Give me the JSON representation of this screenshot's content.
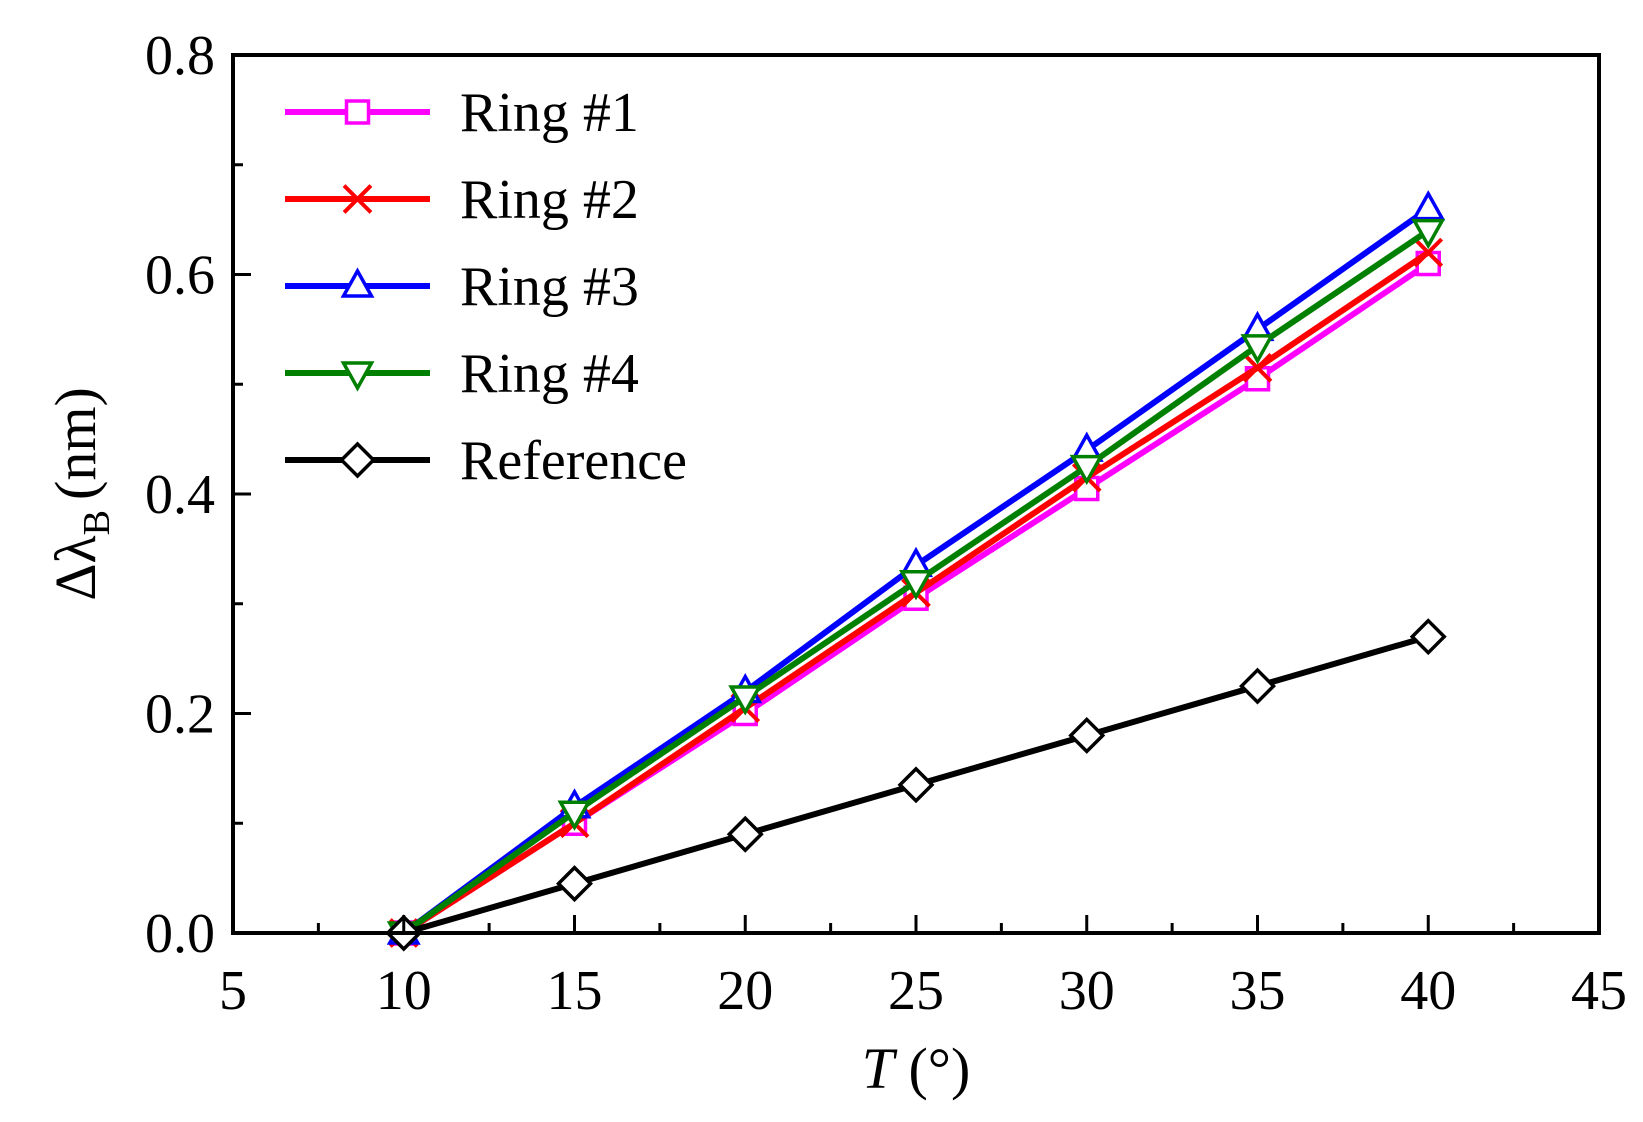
{
  "chart_data": {
    "type": "line",
    "title": "",
    "xlabel_var": "T",
    "xlabel_unit": "(°)",
    "ylabel_prefix": "Δλ",
    "ylabel_sub": "B",
    "ylabel_unit": "(nm)",
    "xlim": [
      5,
      45
    ],
    "ylim": [
      0.0,
      0.8
    ],
    "xticks": [
      5,
      10,
      15,
      20,
      25,
      30,
      35,
      40,
      45
    ],
    "yticks": [
      0.0,
      0.2,
      0.4,
      0.6,
      0.8
    ],
    "xtick_labels": [
      "5",
      "10",
      "15",
      "20",
      "25",
      "30",
      "35",
      "40",
      "45"
    ],
    "ytick_labels": [
      "0.0",
      "0.2",
      "0.4",
      "0.6",
      "0.8"
    ],
    "x": [
      10,
      15,
      20,
      25,
      30,
      35,
      40
    ],
    "series": [
      {
        "name": "Ring #1",
        "values": [
          0.0,
          0.1,
          0.2,
          0.305,
          0.405,
          0.505,
          0.61
        ],
        "color": "#ff00ff",
        "marker": "square"
      },
      {
        "name": "Ring #2",
        "values": [
          0.0,
          0.1,
          0.205,
          0.31,
          0.415,
          0.515,
          0.62
        ],
        "color": "#ff0000",
        "marker": "x"
      },
      {
        "name": "Ring #3",
        "values": [
          0.0,
          0.115,
          0.22,
          0.335,
          0.44,
          0.55,
          0.66
        ],
        "color": "#0000ff",
        "marker": "triangle-up"
      },
      {
        "name": "Ring #4",
        "values": [
          0.0,
          0.11,
          0.215,
          0.32,
          0.425,
          0.535,
          0.64
        ],
        "color": "#008000",
        "marker": "triangle-down"
      },
      {
        "name": "Reference",
        "values": [
          0.0,
          0.045,
          0.09,
          0.135,
          0.18,
          0.225,
          0.27
        ],
        "color": "#000000",
        "marker": "diamond"
      }
    ],
    "legend_position": "top-left",
    "grid": false
  }
}
